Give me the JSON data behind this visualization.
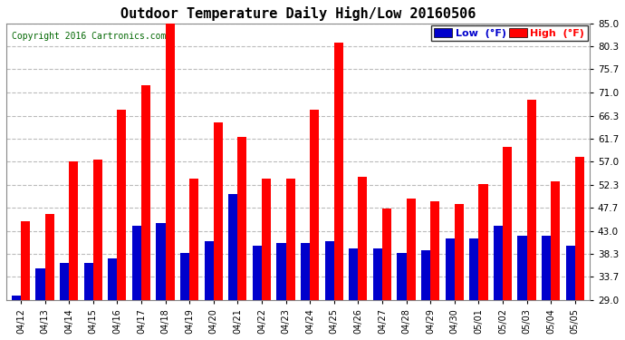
{
  "title": "Outdoor Temperature Daily High/Low 20160506",
  "copyright_text": "Copyright 2016 Cartronics.com",
  "dates": [
    "04/12",
    "04/13",
    "04/14",
    "04/15",
    "04/16",
    "04/17",
    "04/18",
    "04/19",
    "04/20",
    "04/21",
    "04/22",
    "04/23",
    "04/24",
    "04/25",
    "04/26",
    "04/27",
    "04/28",
    "04/29",
    "04/30",
    "05/01",
    "05/02",
    "05/03",
    "05/04",
    "05/05"
  ],
  "highs": [
    45.0,
    46.5,
    57.0,
    57.5,
    67.5,
    72.5,
    85.0,
    53.5,
    65.0,
    62.0,
    53.5,
    53.5,
    67.5,
    81.0,
    54.0,
    47.5,
    49.5,
    49.0,
    48.5,
    52.5,
    60.0,
    69.5,
    53.0,
    58.0
  ],
  "lows": [
    30.0,
    35.5,
    36.5,
    36.5,
    37.5,
    44.0,
    44.5,
    38.5,
    41.0,
    50.5,
    40.0,
    40.5,
    40.5,
    41.0,
    39.5,
    39.5,
    38.5,
    39.0,
    41.5,
    41.5,
    44.0,
    42.0,
    42.0,
    40.0
  ],
  "high_color": "#ff0000",
  "low_color": "#0000cc",
  "ylim_min": 29.0,
  "ylim_max": 85.0,
  "ytick_values": [
    29.0,
    33.7,
    38.3,
    43.0,
    47.7,
    52.3,
    57.0,
    61.7,
    66.3,
    71.0,
    75.7,
    80.3,
    85.0
  ],
  "ytick_labels": [
    "29.0",
    "33.7",
    "38.3",
    "43.0",
    "47.7",
    "52.3",
    "57.0",
    "61.7",
    "66.3",
    "71.0",
    "75.7",
    "80.3",
    "85.0"
  ],
  "background_color": "#ffffff",
  "grid_color": "#bbbbbb",
  "title_fontsize": 11,
  "copyright_fontsize": 7,
  "copyright_color": "#006600",
  "legend_low_label": "Low  (°F)",
  "legend_high_label": "High  (°F)",
  "bar_width": 0.38,
  "figsize": [
    6.9,
    3.75
  ],
  "dpi": 100
}
